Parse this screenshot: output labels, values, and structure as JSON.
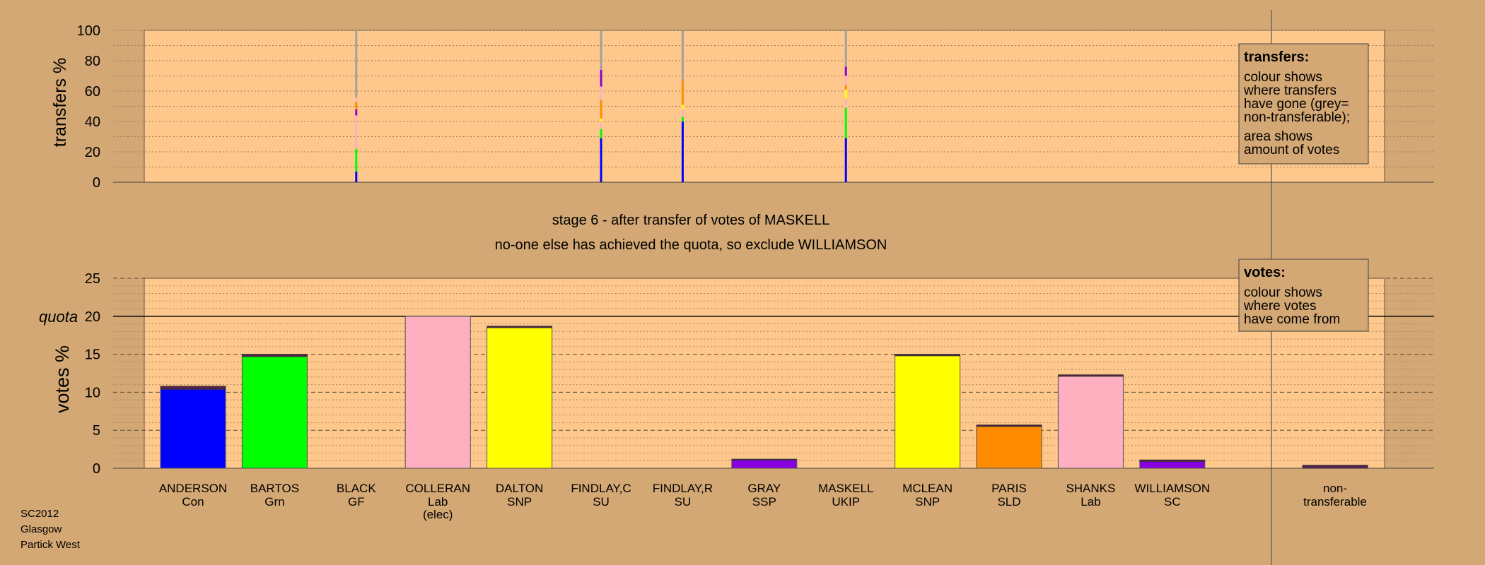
{
  "colors": {
    "background": "#d4a874",
    "plot_bg": "#fec88c",
    "Con": "#0000ff",
    "Grn": "#00ff00",
    "Lab": "#ffb0c0",
    "SNP": "#ffff00",
    "SSP": "#8800dd",
    "SLD": "#ff8c00",
    "SC": "#8800dd",
    "nontransferable": "#552255",
    "grey": "#a0a0a0",
    "dark": "#552244"
  },
  "stage_title": "stage 6 - after transfer of votes of MASKELL",
  "stage_subtitle": "no-one else has achieved the quota, so exclude WILLIAMSON",
  "footer": [
    "SC2012",
    "Glasgow",
    "Partick West"
  ],
  "legends": {
    "transfers": {
      "title": "transfers:",
      "lines1": [
        "colour shows",
        "where transfers",
        "have gone (grey=",
        "non-transferable);"
      ],
      "lines2": [
        "area shows",
        "amount of votes"
      ]
    },
    "votes": {
      "title": "votes:",
      "lines1": [
        "colour shows",
        "where votes",
        "have come from"
      ]
    }
  },
  "chart_data": [
    {
      "type": "bar",
      "ylabel": "transfers %",
      "ylim": [
        0,
        100
      ],
      "yticks": [
        0,
        20,
        40,
        60,
        80,
        100
      ],
      "grid": true,
      "categories": [
        "ANDERSON",
        "BARTOS",
        "BLACK",
        "COLLERAN",
        "DALTON",
        "FINDLAY,C",
        "FINDLAY,R",
        "GRAY",
        "MASKELL",
        "MCLEAN",
        "PARIS",
        "SHANKS",
        "WILLIAMSON"
      ],
      "transfer_bars": [
        {
          "candidate": "BLACK",
          "segments": [
            {
              "party": "Con",
              "value": 7
            },
            {
              "party": "Grn",
              "value": 15
            },
            {
              "party": "Lab",
              "value": 22
            },
            {
              "party": "SSP",
              "value": 4
            },
            {
              "party": "SLD",
              "value": 5
            },
            {
              "party": "Lab",
              "value": 3
            },
            {
              "party": "grey",
              "value": 44
            }
          ]
        },
        {
          "candidate": "FINDLAY,C",
          "segments": [
            {
              "party": "Con",
              "value": 29
            },
            {
              "party": "Grn",
              "value": 6
            },
            {
              "party": "Lab",
              "value": 5
            },
            {
              "party": "SNP",
              "value": 2
            },
            {
              "party": "SLD",
              "value": 12
            },
            {
              "party": "Lab",
              "value": 9
            },
            {
              "party": "SSP",
              "value": 11
            },
            {
              "party": "grey",
              "value": 26
            }
          ]
        },
        {
          "candidate": "FINDLAY,R",
          "segments": [
            {
              "party": "Con",
              "value": 40
            },
            {
              "party": "Grn",
              "value": 3
            },
            {
              "party": "Lab",
              "value": 5
            },
            {
              "party": "SNP",
              "value": 3
            },
            {
              "party": "SLD",
              "value": 16
            },
            {
              "party": "grey",
              "value": 33
            }
          ]
        },
        {
          "candidate": "MASKELL",
          "segments": [
            {
              "party": "Con",
              "value": 29
            },
            {
              "party": "Grn",
              "value": 20
            },
            {
              "party": "Lab",
              "value": 6
            },
            {
              "party": "SNP",
              "value": 6
            },
            {
              "party": "SLD",
              "value": 3
            },
            {
              "party": "Lab",
              "value": 6
            },
            {
              "party": "SSP",
              "value": 6
            },
            {
              "party": "grey",
              "value": 24
            }
          ]
        }
      ]
    },
    {
      "type": "bar",
      "ylabel": "votes %",
      "ylim": [
        0,
        25
      ],
      "yticks": [
        0,
        5,
        10,
        15,
        20,
        25
      ],
      "quota": 20,
      "quota_label": "quota",
      "grid": true,
      "candidates": [
        {
          "name": "ANDERSON",
          "party": "Con",
          "value": 10.4,
          "extra": 0.4
        },
        {
          "name": "BARTOS",
          "party": "Grn",
          "value": 14.7,
          "extra": 0.3
        },
        {
          "name": "BLACK",
          "party": "GF",
          "value": 0,
          "extra": 0
        },
        {
          "name": "COLLERAN",
          "party": "Lab",
          "value": 20.0,
          "extra": 0,
          "note": "(elec)"
        },
        {
          "name": "DALTON",
          "party": "SNP",
          "value": 18.5,
          "extra": 0.2
        },
        {
          "name": "FINDLAY,C",
          "party": "SU",
          "value": 0,
          "extra": 0
        },
        {
          "name": "FINDLAY,R",
          "party": "SU",
          "value": 0,
          "extra": 0
        },
        {
          "name": "GRAY",
          "party": "SSP",
          "value": 1.1,
          "extra": 0.1
        },
        {
          "name": "MASKELL",
          "party": "UKIP",
          "value": 0,
          "extra": 0
        },
        {
          "name": "MCLEAN",
          "party": "SNP",
          "value": 14.8,
          "extra": 0.2
        },
        {
          "name": "PARIS",
          "party": "SLD",
          "value": 5.5,
          "extra": 0.2
        },
        {
          "name": "SHANKS",
          "party": "Lab",
          "value": 12.1,
          "extra": 0.2
        },
        {
          "name": "WILLIAMSON",
          "party": "SC",
          "value": 0.9,
          "extra": 0.2
        }
      ],
      "nontransferable": {
        "label1": "non-",
        "label2": "transferable",
        "value": 0.4
      }
    }
  ]
}
